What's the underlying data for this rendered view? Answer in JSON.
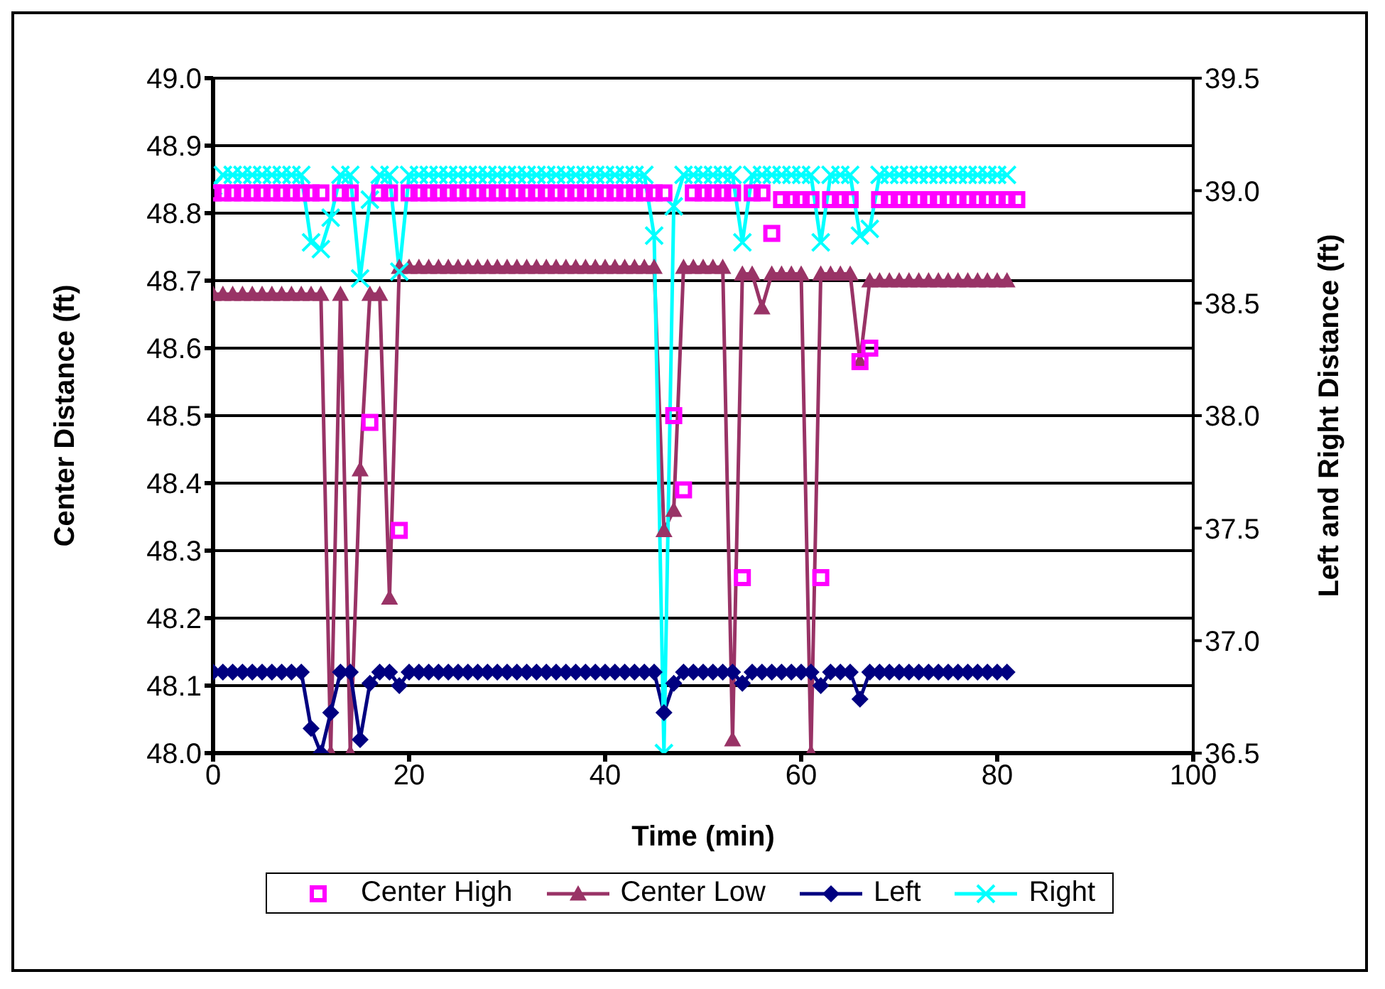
{
  "chart_data": {
    "type": "line",
    "xlabel": "Time (min)",
    "ylabel": "Center Distance (ft)",
    "y2label": "Left and Right Distance (ft)",
    "x": [
      0,
      1,
      2,
      3,
      4,
      5,
      6,
      7,
      8,
      9,
      10,
      11,
      12,
      13,
      14,
      15,
      16,
      17,
      18,
      19,
      20,
      21,
      22,
      23,
      24,
      25,
      26,
      27,
      28,
      29,
      30,
      31,
      32,
      33,
      34,
      35,
      36,
      37,
      38,
      39,
      40,
      41,
      42,
      43,
      44,
      45,
      46,
      47,
      48,
      49,
      50,
      51,
      52,
      53,
      54,
      55,
      56,
      57,
      58,
      59,
      60,
      61,
      62,
      63,
      64,
      65,
      66,
      67,
      68,
      69,
      70,
      71,
      72,
      73,
      74,
      75,
      76,
      77,
      78,
      79,
      80,
      81,
      82
    ],
    "series": [
      {
        "name": "Center High",
        "type": "scatter",
        "marker": "square",
        "color": "#ff00ff",
        "values": [
          48.83,
          48.83,
          48.83,
          48.83,
          48.83,
          48.83,
          48.83,
          48.83,
          48.83,
          48.83,
          48.83,
          48.83,
          null,
          48.83,
          48.83,
          null,
          48.49,
          48.83,
          48.83,
          48.33,
          48.83,
          48.83,
          48.83,
          48.83,
          48.83,
          48.83,
          48.83,
          48.83,
          48.83,
          48.83,
          48.83,
          48.83,
          48.83,
          48.83,
          48.83,
          48.83,
          48.83,
          48.83,
          48.83,
          48.83,
          48.83,
          48.83,
          48.83,
          48.83,
          48.83,
          48.83,
          48.83,
          48.5,
          48.39,
          48.83,
          48.83,
          48.83,
          48.83,
          48.83,
          48.26,
          48.83,
          48.83,
          48.77,
          48.82,
          48.82,
          48.82,
          48.82,
          48.26,
          48.82,
          48.82,
          48.82,
          48.58,
          48.6,
          48.82,
          48.82,
          48.82,
          48.82,
          48.82,
          48.82,
          48.82,
          48.82,
          48.82,
          48.82,
          48.82,
          48.82,
          48.82,
          48.82,
          48.82
        ]
      },
      {
        "name": "Center Low",
        "marker": "triangle",
        "color": "#993366",
        "values": [
          48.68,
          48.68,
          48.68,
          48.68,
          48.68,
          48.68,
          48.68,
          48.68,
          48.68,
          48.68,
          48.68,
          48.68,
          48.0,
          48.68,
          48.0,
          48.42,
          48.68,
          48.68,
          48.23,
          48.72,
          48.72,
          48.72,
          48.72,
          48.72,
          48.72,
          48.72,
          48.72,
          48.72,
          48.72,
          48.72,
          48.72,
          48.72,
          48.72,
          48.72,
          48.72,
          48.72,
          48.72,
          48.72,
          48.72,
          48.72,
          48.72,
          48.72,
          48.72,
          48.72,
          48.72,
          48.72,
          48.33,
          48.36,
          48.72,
          48.72,
          48.72,
          48.72,
          48.72,
          48.02,
          48.71,
          48.71,
          48.66,
          48.71,
          48.71,
          48.71,
          48.71,
          48.0,
          48.71,
          48.71,
          48.71,
          48.71,
          48.58,
          48.7,
          48.7,
          48.7,
          48.7,
          48.7,
          48.7,
          48.7,
          48.7,
          48.7,
          48.7,
          48.7,
          48.7,
          48.7,
          48.7,
          48.7,
          null
        ]
      },
      {
        "name": "Left",
        "marker": "diamond",
        "color": "#000080",
        "axis": "y2",
        "values": [
          36.86,
          36.86,
          36.86,
          36.86,
          36.86,
          36.86,
          36.86,
          36.86,
          36.86,
          36.86,
          36.61,
          36.5,
          36.68,
          36.86,
          36.86,
          36.56,
          36.81,
          36.86,
          36.86,
          36.8,
          36.86,
          36.86,
          36.86,
          36.86,
          36.86,
          36.86,
          36.86,
          36.86,
          36.86,
          36.86,
          36.86,
          36.86,
          36.86,
          36.86,
          36.86,
          36.86,
          36.86,
          36.86,
          36.86,
          36.86,
          36.86,
          36.86,
          36.86,
          36.86,
          36.86,
          36.86,
          36.68,
          36.81,
          36.86,
          36.86,
          36.86,
          36.86,
          36.86,
          36.86,
          36.81,
          36.86,
          36.86,
          36.86,
          36.86,
          36.86,
          36.86,
          36.86,
          36.8,
          36.86,
          36.86,
          36.86,
          36.74,
          36.86,
          36.86,
          36.86,
          36.86,
          36.86,
          36.86,
          36.86,
          36.86,
          36.86,
          36.86,
          36.86,
          36.86,
          36.86,
          36.86,
          36.86,
          null
        ]
      },
      {
        "name": "Right",
        "marker": "cross",
        "color": "#00ffff",
        "axis": "y2",
        "values": [
          39.02,
          39.07,
          39.07,
          39.07,
          39.07,
          39.07,
          39.07,
          39.07,
          39.07,
          39.07,
          38.77,
          38.74,
          38.88,
          39.07,
          39.07,
          38.61,
          38.96,
          39.07,
          39.07,
          38.64,
          39.07,
          39.07,
          39.07,
          39.07,
          39.07,
          39.07,
          39.07,
          39.07,
          39.07,
          39.07,
          39.07,
          39.07,
          39.07,
          39.07,
          39.07,
          39.07,
          39.07,
          39.07,
          39.07,
          39.07,
          39.07,
          39.07,
          39.07,
          39.07,
          39.07,
          38.8,
          36.5,
          38.93,
          39.07,
          39.07,
          39.07,
          39.07,
          39.07,
          39.07,
          38.77,
          39.07,
          39.07,
          39.07,
          39.07,
          39.07,
          39.07,
          39.07,
          38.77,
          39.07,
          39.07,
          39.07,
          38.8,
          38.83,
          39.07,
          39.07,
          39.07,
          39.07,
          39.07,
          39.07,
          39.07,
          39.07,
          39.07,
          39.07,
          39.07,
          39.07,
          39.07,
          39.07,
          null
        ]
      }
    ],
    "xlim": [
      0,
      100
    ],
    "xticks": [
      0,
      20,
      40,
      60,
      80,
      {
        "value": 100,
        "label": "100"
      }
    ],
    "ylim": [
      48,
      49
    ],
    "yticks": [
      {
        "value": 48,
        "label": "48.0"
      },
      48.1,
      48.2,
      48.3,
      48.4,
      48.5,
      48.6,
      48.7,
      48.8,
      48.9,
      {
        "value": 49,
        "label": "49.0"
      }
    ],
    "y2lim": [
      36.5,
      39.5
    ],
    "y2ticks": [
      36.5,
      {
        "value": 37,
        "label": "37.0"
      },
      37.5,
      {
        "value": 38,
        "label": "38.0"
      },
      38.5,
      {
        "value": 39,
        "label": "39.0"
      },
      39.5
    ],
    "grid": "y",
    "legend": "bottom"
  }
}
